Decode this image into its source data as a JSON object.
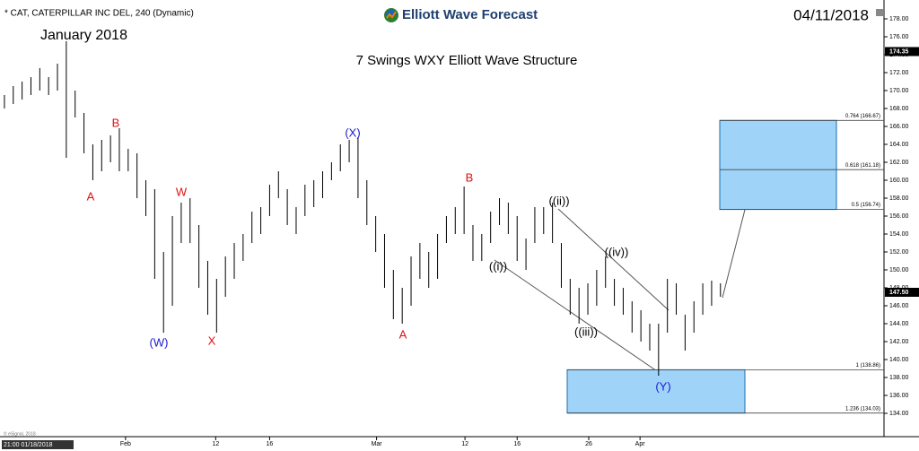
{
  "chart_data": {
    "type": "ohlc",
    "symbol": "* CAT, CATERPILLAR INC DEL, 240 (Dynamic)",
    "brand": "Elliott Wave Forecast",
    "date": "04/11/2018",
    "period_label": "January 2018",
    "title": "7 Swings WXY Elliott Wave Structure",
    "cursor_label": "21:00 01/18/2018",
    "copyright": "© eSignal, 2018",
    "color": "#000000",
    "high": [
      169.5,
      170.5,
      171,
      171.5,
      172.5,
      171.5,
      173,
      175.5,
      170,
      167.5,
      164,
      164.5,
      165,
      165.8,
      163.5,
      163,
      160,
      159,
      152,
      156,
      157.5,
      158,
      155,
      151,
      149,
      151.5,
      153,
      154,
      156.5,
      157,
      159.5,
      161,
      159,
      157,
      159.5,
      160,
      161,
      162,
      164,
      164.5,
      164.8,
      160,
      156,
      154,
      150,
      148,
      151.5,
      153,
      152,
      154,
      156,
      157,
      159.3,
      155,
      154,
      156.5,
      158,
      157.5,
      156,
      153.5,
      157,
      157,
      157.5,
      153,
      149,
      148,
      148.5,
      150,
      151.5,
      149,
      148,
      146.5,
      145.5,
      144,
      144,
      149,
      148.5,
      145,
      146.5,
      148.5,
      148.8,
      148.5
    ],
    "low": [
      168,
      168.5,
      169,
      169.5,
      170,
      169.5,
      170,
      162.5,
      167,
      163,
      160,
      161,
      162,
      161,
      161,
      158,
      156,
      149,
      143,
      146,
      153,
      153,
      148,
      145,
      143,
      147,
      149,
      151,
      153,
      154,
      156,
      158,
      155,
      154,
      156,
      157,
      158,
      160,
      161,
      162,
      158,
      155,
      152,
      148,
      144.5,
      144,
      146,
      149,
      148,
      149,
      153,
      154,
      154,
      151,
      151,
      153,
      155,
      154,
      151,
      150,
      153,
      154,
      153,
      148,
      145,
      144,
      145,
      146,
      148,
      146,
      145,
      143,
      142,
      141,
      138.2,
      143,
      145,
      141,
      143,
      145,
      146,
      147
    ],
    "xlim": [
      -0.5,
      99.5
    ],
    "xticks": [
      {
        "value": 13.7,
        "label": "Feb"
      },
      {
        "value": 23.9,
        "label": "12"
      },
      {
        "value": 30,
        "label": "16"
      },
      {
        "value": 42.1,
        "label": "Mar"
      },
      {
        "value": 52.1,
        "label": "12"
      },
      {
        "value": 58,
        "label": "16"
      },
      {
        "value": 66.1,
        "label": "26"
      },
      {
        "value": 71.9,
        "label": "Apr"
      }
    ],
    "ylim": [
      131.5,
      178.6
    ],
    "yticks": [
      {
        "value": 134,
        "label": "134.00"
      },
      {
        "value": 136,
        "label": "136.00"
      },
      {
        "value": 138,
        "label": "138.00"
      },
      {
        "value": 140,
        "label": "140.00"
      },
      {
        "value": 142,
        "label": "142.00"
      },
      {
        "value": 144,
        "label": "144.00"
      },
      {
        "value": 146,
        "label": "146.00"
      },
      {
        "value": 148,
        "label": "148.00"
      },
      {
        "value": 150,
        "label": "150.00"
      },
      {
        "value": 152,
        "label": "152.00"
      },
      {
        "value": 154,
        "label": "154.00"
      },
      {
        "value": 156,
        "label": "156.00"
      },
      {
        "value": 158,
        "label": "158.00"
      },
      {
        "value": 160,
        "label": "160.00"
      },
      {
        "value": 162,
        "label": "162.00"
      },
      {
        "value": 164,
        "label": "164.00"
      },
      {
        "value": 166,
        "label": "166.00"
      },
      {
        "value": 168,
        "label": "168.00"
      },
      {
        "value": 170,
        "label": "170.00"
      },
      {
        "value": 172,
        "label": "172.00"
      },
      {
        "value": 174,
        "label": "174.00"
      },
      {
        "value": 176,
        "label": "176.00"
      },
      {
        "value": 178,
        "label": "178.00"
      }
    ],
    "price_markers": [
      {
        "value": 174.35,
        "label": "174.35"
      },
      {
        "value": 147.5,
        "label": "147.50"
      }
    ],
    "fib_levels": [
      {
        "ratio": 0.764,
        "price": 166.67,
        "label": "0.764 (166.67)"
      },
      {
        "ratio": 0.618,
        "price": 161.18,
        "label": "0.618 (161.18)"
      },
      {
        "ratio": 0.5,
        "price": 156.74,
        "label": "0.5 (156.74)"
      },
      {
        "ratio": 1,
        "price": 138.86,
        "label": "1 (138.86)"
      },
      {
        "ratio": 1.236,
        "price": 134.03,
        "label": "1.236 (134.03)"
      }
    ],
    "annotations": [
      {
        "text": "A",
        "color": "#e01010"
      },
      {
        "text": "B",
        "color": "#e01010"
      },
      {
        "text": "(W)",
        "color": "#1a1ad0"
      },
      {
        "text": "W",
        "color": "#e01010"
      },
      {
        "text": "X",
        "color": "#e01010"
      },
      {
        "text": "(X)",
        "color": "#1a1ad0"
      },
      {
        "text": "A",
        "color": "#e01010"
      },
      {
        "text": "B",
        "color": "#e01010"
      },
      {
        "text": "((i))",
        "color": "#000000"
      },
      {
        "text": "((ii))",
        "color": "#000000"
      },
      {
        "text": "((iii))",
        "color": "#000000"
      },
      {
        "text": "((iv))",
        "color": "#000000"
      },
      {
        "text": "(Y)",
        "color": "#1a1ad0"
      }
    ]
  }
}
